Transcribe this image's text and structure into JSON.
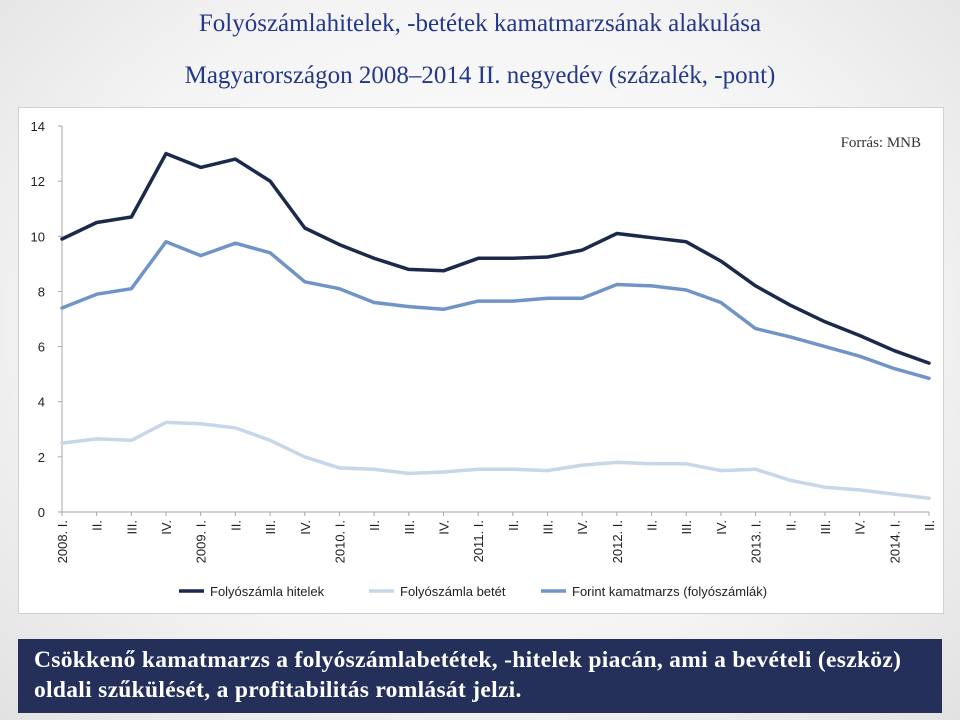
{
  "slide": {
    "title_line1": "Folyószámlahitelek, -betétek kamatmarzsának alakulása",
    "title_line2": "Magyarországon 2008–2014 II. negyedév (százalék, -pont)",
    "footer": "Csökkenő kamatmarzs a folyószámlabetétek, -hitelek piacán, ami a bevételi (eszköz) oldali szűkülését, a profitabilitás romlását jelzi."
  },
  "chart_data": {
    "type": "line",
    "annotation": "Forrás: MNB",
    "categories": [
      "2008. I.",
      "II.",
      "III.",
      "IV.",
      "2009. I.",
      "II.",
      "III.",
      "IV.",
      "2010. I.",
      "II.",
      "III.",
      "IV.",
      "2011. I.",
      "II.",
      "III.",
      "IV.",
      "2012. I.",
      "II.",
      "III.",
      "IV.",
      "2013. I.",
      "II.",
      "III.",
      "IV.",
      "2014. I.",
      "II."
    ],
    "ylim": [
      0,
      14
    ],
    "yticks": [
      0,
      2,
      4,
      6,
      8,
      10,
      12,
      14
    ],
    "grid": false,
    "legend_position": "bottom",
    "series": [
      {
        "name": "Folyószámla hitelek",
        "color": "#1b2a4a",
        "values": [
          9.9,
          10.5,
          10.7,
          13.0,
          12.5,
          12.8,
          12.0,
          10.3,
          9.7,
          9.2,
          8.8,
          8.75,
          9.2,
          9.2,
          9.25,
          9.5,
          10.1,
          9.95,
          9.8,
          9.1,
          8.2,
          7.5,
          6.9,
          6.4,
          5.85,
          5.4
        ]
      },
      {
        "name": "Folyószámla betét",
        "color": "#c8d6ea",
        "values": [
          2.5,
          2.65,
          2.6,
          3.25,
          3.2,
          3.05,
          2.6,
          2.0,
          1.6,
          1.55,
          1.4,
          1.45,
          1.55,
          1.55,
          1.5,
          1.7,
          1.8,
          1.75,
          1.75,
          1.5,
          1.55,
          1.15,
          0.9,
          0.8,
          0.65,
          0.5
        ]
      },
      {
        "name": "Forint kamatmarzs (folyószámlák)",
        "color": "#7094c8",
        "values": [
          7.4,
          7.9,
          8.1,
          9.8,
          9.3,
          9.75,
          9.4,
          8.35,
          8.1,
          7.6,
          7.45,
          7.35,
          7.65,
          7.65,
          7.75,
          7.75,
          8.25,
          8.2,
          8.05,
          7.6,
          6.65,
          6.35,
          6.0,
          5.65,
          5.2,
          4.85
        ]
      }
    ]
  }
}
